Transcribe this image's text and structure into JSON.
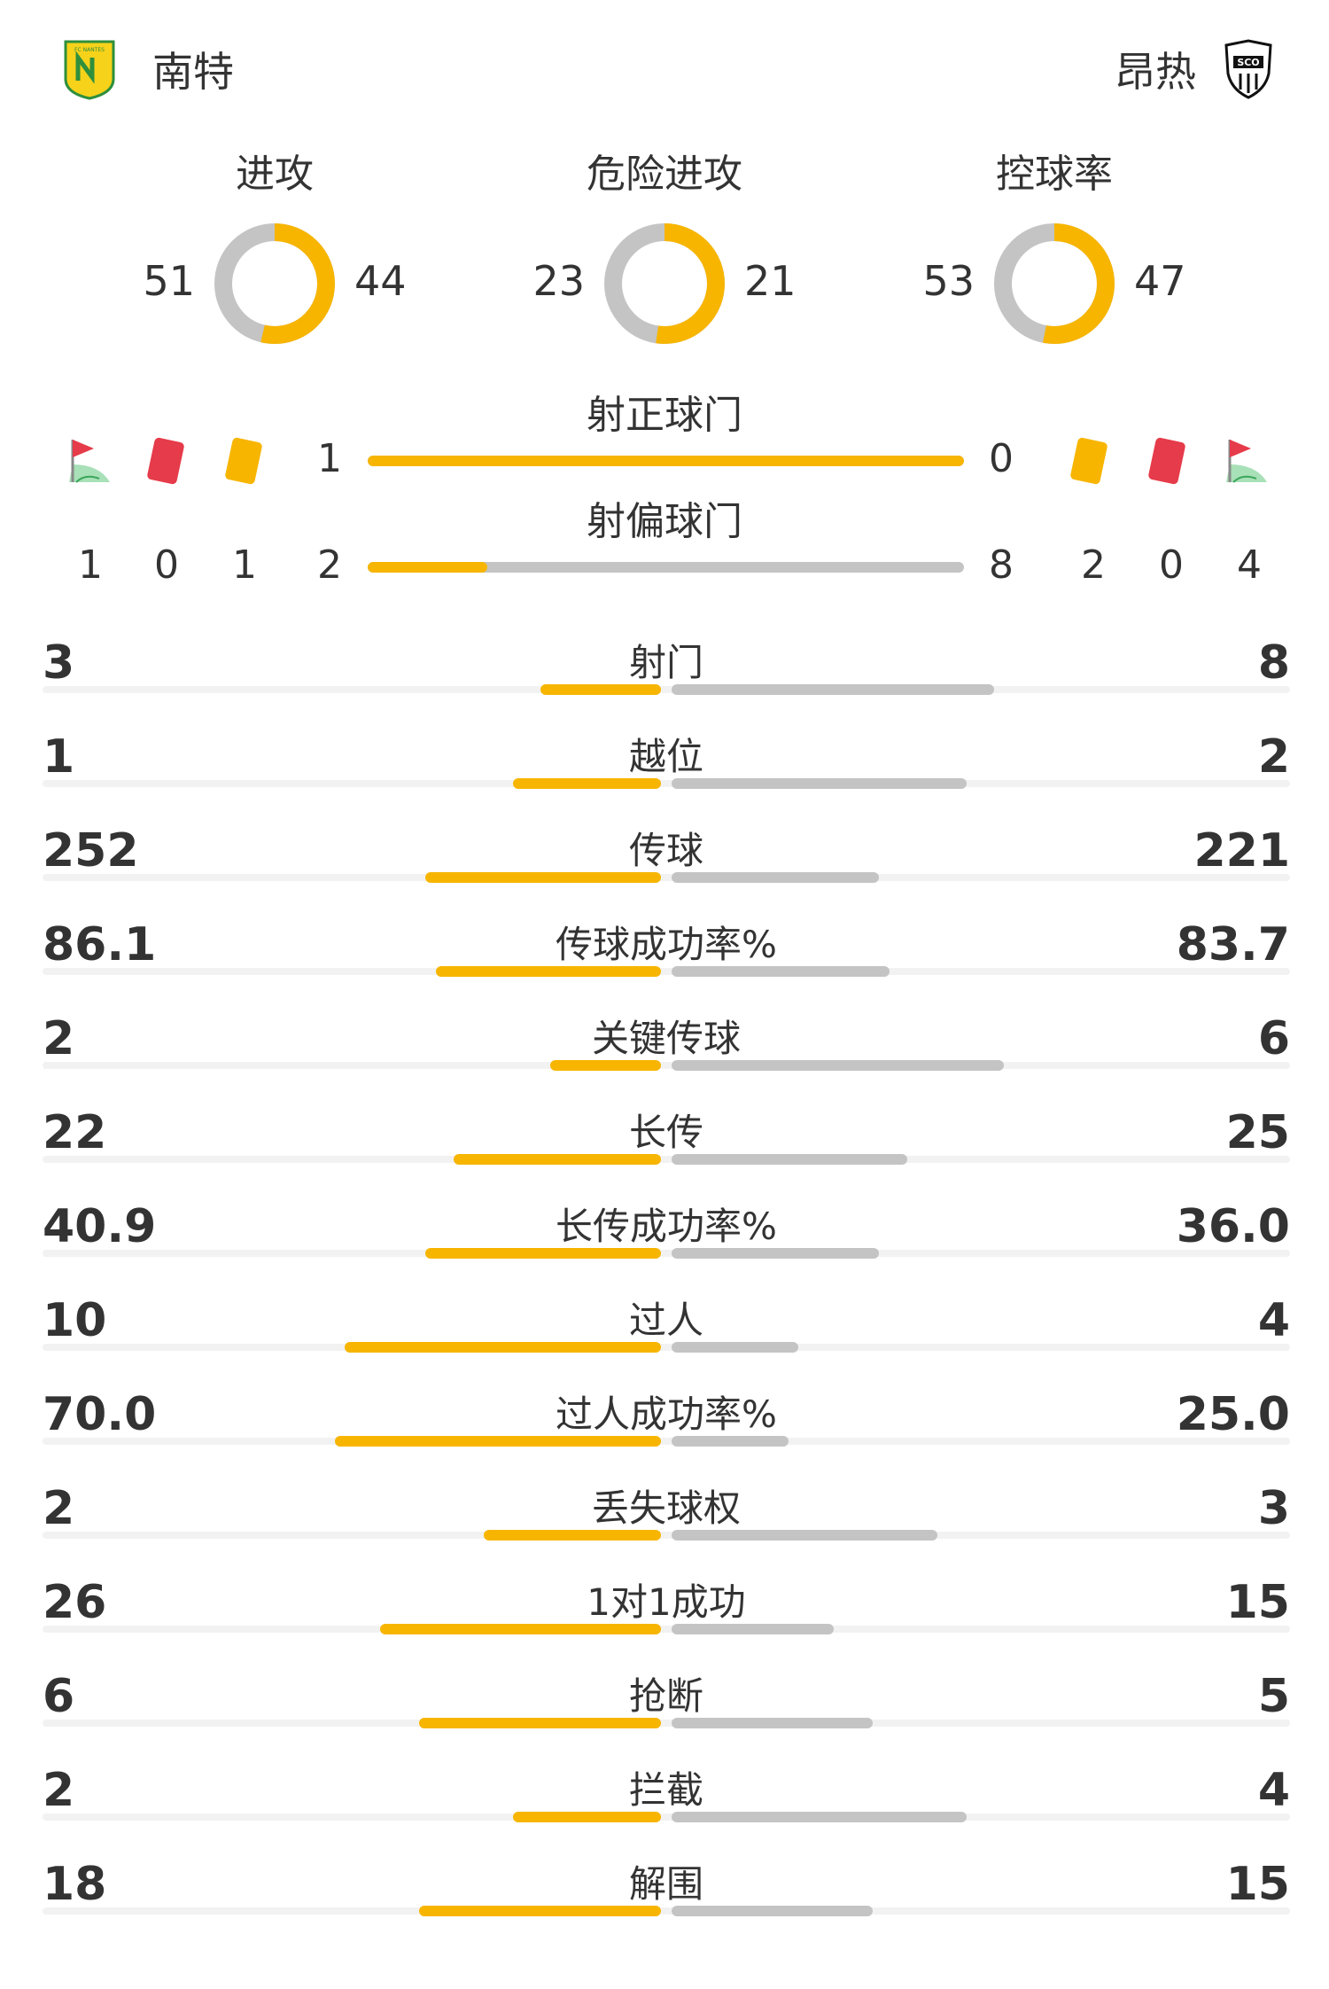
{
  "header": {
    "home_team": "南特",
    "away_team": "昂热",
    "home_logo_text": "FC NANTES",
    "away_logo_text": "SCO",
    "colors": {
      "home": "#f7b500",
      "away": "#c4c4c4"
    }
  },
  "donuts": [
    {
      "title": "进攻",
      "home": "51",
      "away": "44"
    },
    {
      "title": "危险进攻",
      "home": "23",
      "away": "21"
    },
    {
      "title": "控球率",
      "home": "53",
      "away": "47"
    }
  ],
  "shots_on": {
    "title": "射正球门",
    "home": "1",
    "away": "0"
  },
  "shots_off": {
    "title": "射偏球门",
    "home": "2",
    "away": "8"
  },
  "cards": {
    "home": {
      "corners": "1",
      "red": "0",
      "yellow": "1"
    },
    "away": {
      "yellow": "2",
      "red": "0",
      "corners": "4"
    },
    "icons": [
      "corner-flag-icon",
      "red-card-icon",
      "yellow-card-icon"
    ]
  },
  "stats": [
    {
      "label": "射门",
      "home": "3",
      "away": "8"
    },
    {
      "label": "越位",
      "home": "1",
      "away": "2"
    },
    {
      "label": "传球",
      "home": "252",
      "away": "221"
    },
    {
      "label": "传球成功率%",
      "home": "86.1",
      "away": "83.7"
    },
    {
      "label": "关键传球",
      "home": "2",
      "away": "6"
    },
    {
      "label": "长传",
      "home": "22",
      "away": "25"
    },
    {
      "label": "长传成功率%",
      "home": "40.9",
      "away": "36.0"
    },
    {
      "label": "过人",
      "home": "10",
      "away": "4"
    },
    {
      "label": "过人成功率%",
      "home": "70.0",
      "away": "25.0"
    },
    {
      "label": "丢失球权",
      "home": "2",
      "away": "3"
    },
    {
      "label": "1对1成功",
      "home": "26",
      "away": "15"
    },
    {
      "label": "抢断",
      "home": "6",
      "away": "5"
    },
    {
      "label": "拦截",
      "home": "2",
      "away": "4"
    },
    {
      "label": "解围",
      "home": "18",
      "away": "15"
    }
  ]
}
